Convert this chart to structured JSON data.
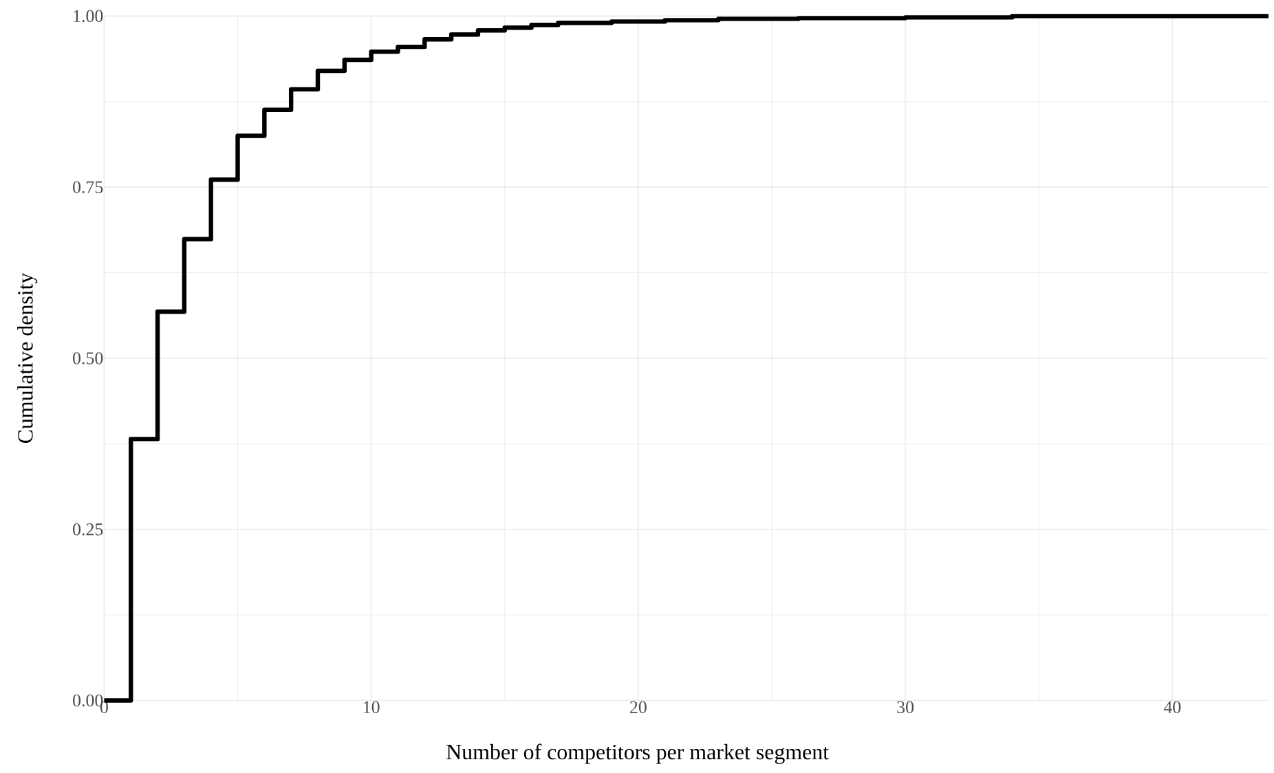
{
  "chart_data": {
    "type": "step",
    "xlabel": "Number of competitors per market segment",
    "ylabel": "Cumulative density",
    "x": [
      0,
      1,
      2,
      3,
      4,
      5,
      6,
      7,
      8,
      9,
      10,
      11,
      12,
      13,
      14,
      15,
      16,
      17,
      19,
      21,
      23,
      26,
      30,
      34,
      43.6
    ],
    "series": [
      {
        "color": "#000000",
        "values": [
          0,
          0.382,
          0.568,
          0.674,
          0.761,
          0.825,
          0.863,
          0.893,
          0.92,
          0.936,
          0.948,
          0.955,
          0.966,
          0.973,
          0.979,
          0.983,
          0.987,
          0.99,
          0.992,
          0.994,
          0.996,
          0.997,
          0.998,
          1,
          1
        ]
      }
    ],
    "xlim": [
      0,
      43.6
    ],
    "ylim": [
      0,
      1
    ],
    "xticks": [
      0,
      10,
      20,
      30,
      40
    ],
    "yticks": [
      {
        "value": 0,
        "label": "0.00"
      },
      {
        "value": 0.25,
        "label": "0.25"
      },
      {
        "value": 0.5,
        "label": "0.50"
      },
      {
        "value": 0.75,
        "label": "0.75"
      },
      {
        "value": 1,
        "label": "1.00"
      }
    ],
    "grid": true,
    "marker": "none",
    "line_style": "solid"
  }
}
